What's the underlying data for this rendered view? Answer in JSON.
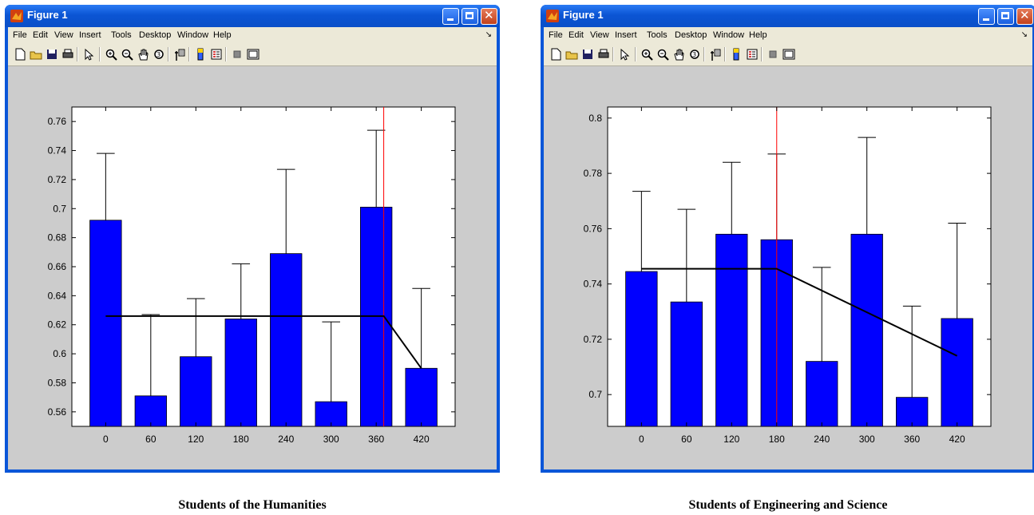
{
  "windows": [
    {
      "id": "left",
      "title": "Figure 1",
      "menu": [
        "File",
        "Edit",
        "View",
        "Insert",
        "Tools",
        "Desktop",
        "Window",
        "Help"
      ],
      "caption": "Students of the Humanities"
    },
    {
      "id": "right",
      "title": "Figure 1",
      "menu": [
        "File",
        "Edit",
        "View",
        "Insert",
        "Tools",
        "Desktop",
        "Window",
        "Help"
      ],
      "caption": "Students of Engineering and Science"
    }
  ],
  "toolbar_icons": [
    "new-file-icon",
    "open-folder-icon",
    "save-icon",
    "print-icon",
    "pointer-icon",
    "zoom-in-icon",
    "zoom-out-icon",
    "pan-icon",
    "rotate-3d-icon",
    "data-cursor-icon",
    "colorbar-icon",
    "legend-icon",
    "hide-plot-tools-icon",
    "show-plot-tools-icon"
  ],
  "colors": {
    "bar": "#0000ff",
    "trend": "#000000",
    "marker": "#ff0000",
    "figure_bg": "#cccccc",
    "titlebar": "#0a56d8"
  },
  "chart_data": [
    {
      "type": "bar",
      "categories": [
        "0",
        "60",
        "120",
        "180",
        "240",
        "300",
        "360",
        "420"
      ],
      "values": [
        0.692,
        0.571,
        0.598,
        0.624,
        0.669,
        0.567,
        0.701,
        0.59
      ],
      "error_upper": [
        0.738,
        0.627,
        0.638,
        0.662,
        0.727,
        0.622,
        0.754,
        0.645
      ],
      "ylim": [
        0.55,
        0.77
      ],
      "yticks": [
        "0.56",
        "0.58",
        "0.6",
        "0.62",
        "0.64",
        "0.66",
        "0.68",
        "0.7",
        "0.72",
        "0.74",
        "0.76"
      ],
      "trend_line": {
        "x": [
          0,
          370,
          420
        ],
        "y": [
          0.626,
          0.626,
          0.59
        ]
      },
      "vertical_marker_x": 370,
      "grid": false
    },
    {
      "type": "bar",
      "categories": [
        "0",
        "60",
        "120",
        "180",
        "240",
        "300",
        "360",
        "420"
      ],
      "values": [
        0.7445,
        0.7335,
        0.758,
        0.756,
        0.712,
        0.758,
        0.699,
        0.7275
      ],
      "error_upper": [
        0.7735,
        0.767,
        0.784,
        0.787,
        0.746,
        0.793,
        0.732,
        0.762
      ],
      "ylim": [
        0.6885,
        0.804
      ],
      "yticks": [
        "0.7",
        "0.72",
        "0.74",
        "0.76",
        "0.78",
        "0.8"
      ],
      "trend_line": {
        "x": [
          0,
          180,
          420
        ],
        "y": [
          0.7455,
          0.7455,
          0.714
        ]
      },
      "vertical_marker_x": 180,
      "grid": false
    }
  ]
}
